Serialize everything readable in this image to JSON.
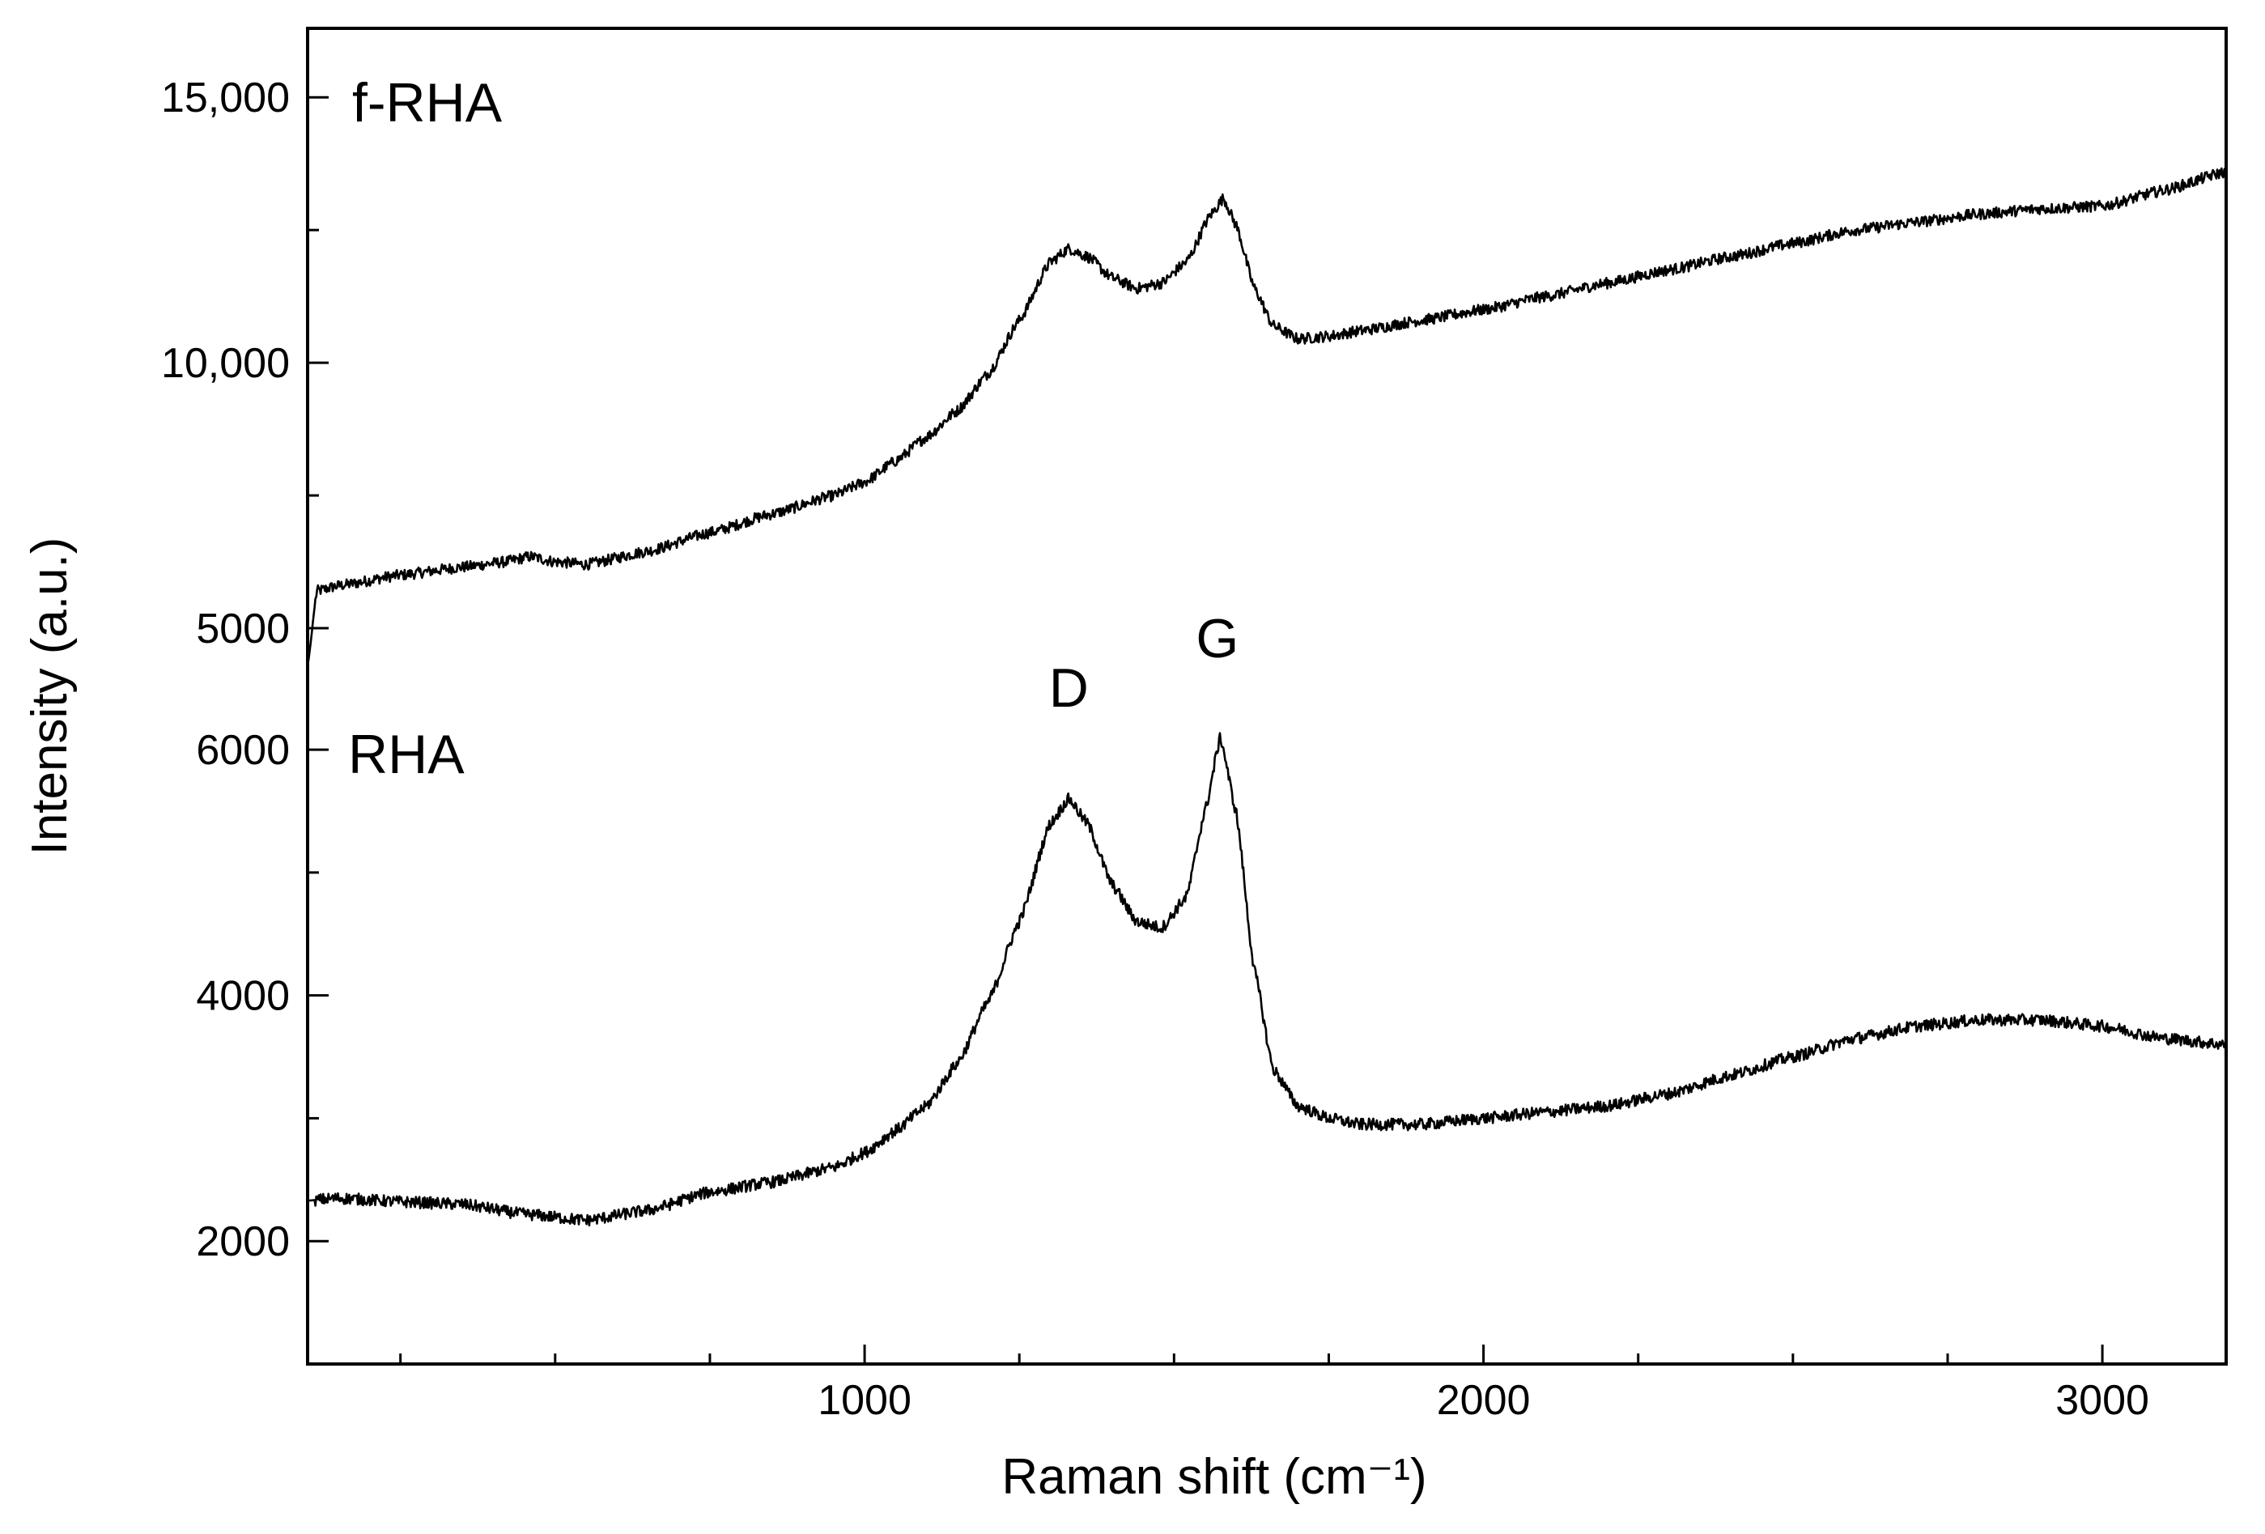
{
  "chart_data": {
    "type": "line",
    "title": "",
    "xlabel": "Raman shift (cm⁻¹)",
    "ylabel": "Intensity (a.u.)",
    "xlim": [
      100,
      3200
    ],
    "x_ticks": [
      {
        "value": 1000,
        "label": "1000"
      },
      {
        "value": 2000,
        "label": "2000"
      },
      {
        "value": 3000,
        "label": "3000"
      }
    ],
    "panels": [
      {
        "name": "f-RHA",
        "label": "f-RHA",
        "ylim": [
          4100,
          16300
        ],
        "y_ticks": [
          {
            "value": 5000,
            "label": "5000"
          },
          {
            "value": 10000,
            "label": "10,000"
          },
          {
            "value": 15000,
            "label": "15,000"
          }
        ],
        "minor_ticks": [
          7500,
          12500
        ],
        "points": [
          [
            100,
            4300
          ],
          [
            115,
            5700
          ],
          [
            150,
            5800
          ],
          [
            250,
            6000
          ],
          [
            350,
            6150
          ],
          [
            420,
            6250
          ],
          [
            460,
            6350
          ],
          [
            500,
            6250
          ],
          [
            550,
            6200
          ],
          [
            650,
            6450
          ],
          [
            750,
            6800
          ],
          [
            850,
            7150
          ],
          [
            950,
            7500
          ],
          [
            1000,
            7750
          ],
          [
            1050,
            8150
          ],
          [
            1100,
            8600
          ],
          [
            1150,
            9100
          ],
          [
            1200,
            9800
          ],
          [
            1250,
            10800
          ],
          [
            1300,
            11900
          ],
          [
            1330,
            12150
          ],
          [
            1360,
            12000
          ],
          [
            1400,
            11600
          ],
          [
            1440,
            11400
          ],
          [
            1480,
            11500
          ],
          [
            1520,
            11900
          ],
          [
            1560,
            12800
          ],
          [
            1580,
            13100
          ],
          [
            1600,
            12600
          ],
          [
            1630,
            11400
          ],
          [
            1660,
            10700
          ],
          [
            1700,
            10450
          ],
          [
            1750,
            10500
          ],
          [
            1800,
            10600
          ],
          [
            1900,
            10800
          ],
          [
            2000,
            11000
          ],
          [
            2100,
            11250
          ],
          [
            2200,
            11500
          ],
          [
            2300,
            11750
          ],
          [
            2400,
            12000
          ],
          [
            2500,
            12250
          ],
          [
            2600,
            12500
          ],
          [
            2700,
            12650
          ],
          [
            2800,
            12800
          ],
          [
            2900,
            12900
          ],
          [
            3000,
            12950
          ],
          [
            3100,
            13250
          ],
          [
            3200,
            13600
          ]
        ]
      },
      {
        "name": "RHA",
        "label": "RHA",
        "ylim": [
          1000,
          6600
        ],
        "y_ticks": [
          {
            "value": 2000,
            "label": "2000"
          },
          {
            "value": 4000,
            "label": "4000"
          },
          {
            "value": 6000,
            "label": "6000"
          }
        ],
        "minor_ticks": [
          1000,
          3000,
          5000
        ],
        "annotations": [
          {
            "text": "D",
            "x": 1330,
            "y": 6350
          },
          {
            "text": "G",
            "x": 1570,
            "y": 6750
          }
        ],
        "points": [
          [
            100,
            2330
          ],
          [
            150,
            2350
          ],
          [
            250,
            2320
          ],
          [
            350,
            2300
          ],
          [
            450,
            2220
          ],
          [
            550,
            2170
          ],
          [
            650,
            2250
          ],
          [
            750,
            2400
          ],
          [
            850,
            2480
          ],
          [
            950,
            2600
          ],
          [
            1000,
            2720
          ],
          [
            1050,
            2900
          ],
          [
            1100,
            3100
          ],
          [
            1150,
            3450
          ],
          [
            1200,
            3950
          ],
          [
            1250,
            4600
          ],
          [
            1300,
            5400
          ],
          [
            1330,
            5600
          ],
          [
            1360,
            5400
          ],
          [
            1400,
            4900
          ],
          [
            1440,
            4600
          ],
          [
            1480,
            4550
          ],
          [
            1520,
            4800
          ],
          [
            1550,
            5500
          ],
          [
            1575,
            6100
          ],
          [
            1600,
            5500
          ],
          [
            1630,
            4200
          ],
          [
            1660,
            3400
          ],
          [
            1700,
            3100
          ],
          [
            1750,
            3000
          ],
          [
            1800,
            2950
          ],
          [
            1900,
            2950
          ],
          [
            2000,
            3000
          ],
          [
            2100,
            3050
          ],
          [
            2200,
            3100
          ],
          [
            2300,
            3200
          ],
          [
            2400,
            3350
          ],
          [
            2500,
            3500
          ],
          [
            2600,
            3650
          ],
          [
            2700,
            3750
          ],
          [
            2800,
            3800
          ],
          [
            2900,
            3800
          ],
          [
            3000,
            3750
          ],
          [
            3100,
            3650
          ],
          [
            3200,
            3600
          ]
        ]
      }
    ]
  }
}
